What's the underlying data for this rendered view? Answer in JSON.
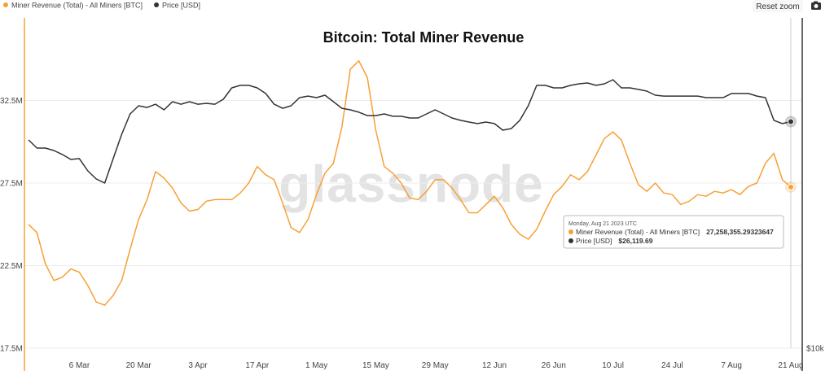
{
  "chart_data": {
    "type": "line",
    "title": "Bitcoin: Total Miner Revenue",
    "watermark": "glassnode",
    "reset_button": "Reset zoom",
    "x": [
      "22 Feb",
      "24 Feb",
      "26 Feb",
      "28 Feb",
      "2 Mar",
      "4 Mar",
      "6 Mar",
      "8 Mar",
      "10 Mar",
      "12 Mar",
      "14 Mar",
      "16 Mar",
      "18 Mar",
      "20 Mar",
      "22 Mar",
      "24 Mar",
      "26 Mar",
      "28 Mar",
      "30 Mar",
      "1 Apr",
      "3 Apr",
      "5 Apr",
      "7 Apr",
      "9 Apr",
      "11 Apr",
      "13 Apr",
      "15 Apr",
      "17 Apr",
      "19 Apr",
      "21 Apr",
      "23 Apr",
      "25 Apr",
      "27 Apr",
      "29 Apr",
      "1 May",
      "3 May",
      "5 May",
      "7 May",
      "9 May",
      "11 May",
      "13 May",
      "15 May",
      "17 May",
      "19 May",
      "21 May",
      "23 May",
      "25 May",
      "27 May",
      "29 May",
      "31 May",
      "2 Jun",
      "4 Jun",
      "6 Jun",
      "8 Jun",
      "10 Jun",
      "12 Jun",
      "14 Jun",
      "16 Jun",
      "18 Jun",
      "20 Jun",
      "22 Jun",
      "24 Jun",
      "26 Jun",
      "28 Jun",
      "30 Jun",
      "2 Jul",
      "4 Jul",
      "6 Jul",
      "8 Jul",
      "10 Jul",
      "12 Jul",
      "14 Jul",
      "16 Jul",
      "18 Jul",
      "20 Jul",
      "22 Jul",
      "24 Jul",
      "26 Jul",
      "28 Jul",
      "30 Jul",
      "1 Aug",
      "3 Aug",
      "5 Aug",
      "7 Aug",
      "9 Aug",
      "11 Aug",
      "13 Aug",
      "15 Aug",
      "17 Aug",
      "19 Aug",
      "21 Aug"
    ],
    "xticks": [
      "6 Mar",
      "20 Mar",
      "3 Apr",
      "17 Apr",
      "1 May",
      "15 May",
      "29 May",
      "12 Jun",
      "26 Jun",
      "10 Jul",
      "24 Jul",
      "7 Aug",
      "21 Aug"
    ],
    "series": [
      {
        "name": "Miner Revenue (Total) - All Miners [BTC]",
        "color": "#f7a035",
        "axis": "y",
        "values": [
          25000000,
          24500000,
          22600000,
          21600000,
          21800000,
          22300000,
          22100000,
          21300000,
          20300000,
          20100000,
          20700000,
          21600000,
          23500000,
          25300000,
          26500000,
          28200000,
          27800000,
          27200000,
          26300000,
          25800000,
          25900000,
          26400000,
          26500000,
          26500000,
          26500000,
          26900000,
          27500000,
          28500000,
          28000000,
          27700000,
          26300000,
          24800000,
          24500000,
          25300000,
          26800000,
          28100000,
          28700000,
          30900000,
          34400000,
          34900000,
          33900000,
          30700000,
          28500000,
          28100000,
          27500000,
          26600000,
          26500000,
          27000000,
          27700000,
          27700000,
          27200000,
          26500000,
          25700000,
          25700000,
          26200000,
          26700000,
          26000000,
          25000000,
          24400000,
          24100000,
          24700000,
          25800000,
          26800000,
          27300000,
          28000000,
          27700000,
          28200000,
          29200000,
          30200000,
          30600000,
          30100000,
          28700000,
          27400000,
          27000000,
          27500000,
          26900000,
          26800000,
          26200000,
          26400000,
          26800000,
          26700000,
          27000000,
          26900000,
          27100000,
          26800000,
          27300000,
          27500000,
          28700000,
          29300000,
          27700000,
          27258355.29323647
        ]
      },
      {
        "name": "Price [USD]",
        "color": "#333333",
        "axis": "y2",
        "values": [
          24820,
          24240,
          24240,
          24065,
          23780,
          23430,
          23490,
          22620,
          22040,
          21750,
          23490,
          25220,
          26670,
          27250,
          27130,
          27360,
          26960,
          27540,
          27360,
          27540,
          27360,
          27420,
          27360,
          27710,
          28520,
          28700,
          28700,
          28520,
          28120,
          27360,
          27070,
          27250,
          27830,
          27940,
          27830,
          28000,
          27540,
          27070,
          26960,
          26790,
          26550,
          26550,
          26670,
          26500,
          26500,
          26380,
          26380,
          26670,
          26960,
          26670,
          26380,
          26210,
          26090,
          25980,
          26090,
          25980,
          25510,
          25630,
          26210,
          27250,
          28700,
          28700,
          28520,
          28520,
          28700,
          28810,
          28870,
          28700,
          28810,
          29100,
          28520,
          28520,
          28410,
          28290,
          28000,
          27940,
          27940,
          27940,
          27940,
          27940,
          27830,
          27830,
          27830,
          28120,
          28120,
          28120,
          27940,
          27830,
          26210,
          25980,
          26119.69
        ]
      }
    ],
    "ylim": [
      17500000,
      37500000
    ],
    "yticks": [
      {
        "value": 17500000,
        "label": "17.5M"
      },
      {
        "value": 22500000,
        "label": "22.5M"
      },
      {
        "value": 27500000,
        "label": "27.5M"
      },
      {
        "value": 32500000,
        "label": "32.5M"
      }
    ],
    "y2lim": [
      10000,
      33500
    ],
    "y2ticks": [
      {
        "value": 10000,
        "label": "$10k"
      }
    ],
    "grid": true,
    "legend": "top-left",
    "tooltip": {
      "date": "Monday, Aug 21 2023 UTC",
      "value_labels": [
        "27,258,355.29323647",
        "$26,119.69"
      ]
    }
  }
}
